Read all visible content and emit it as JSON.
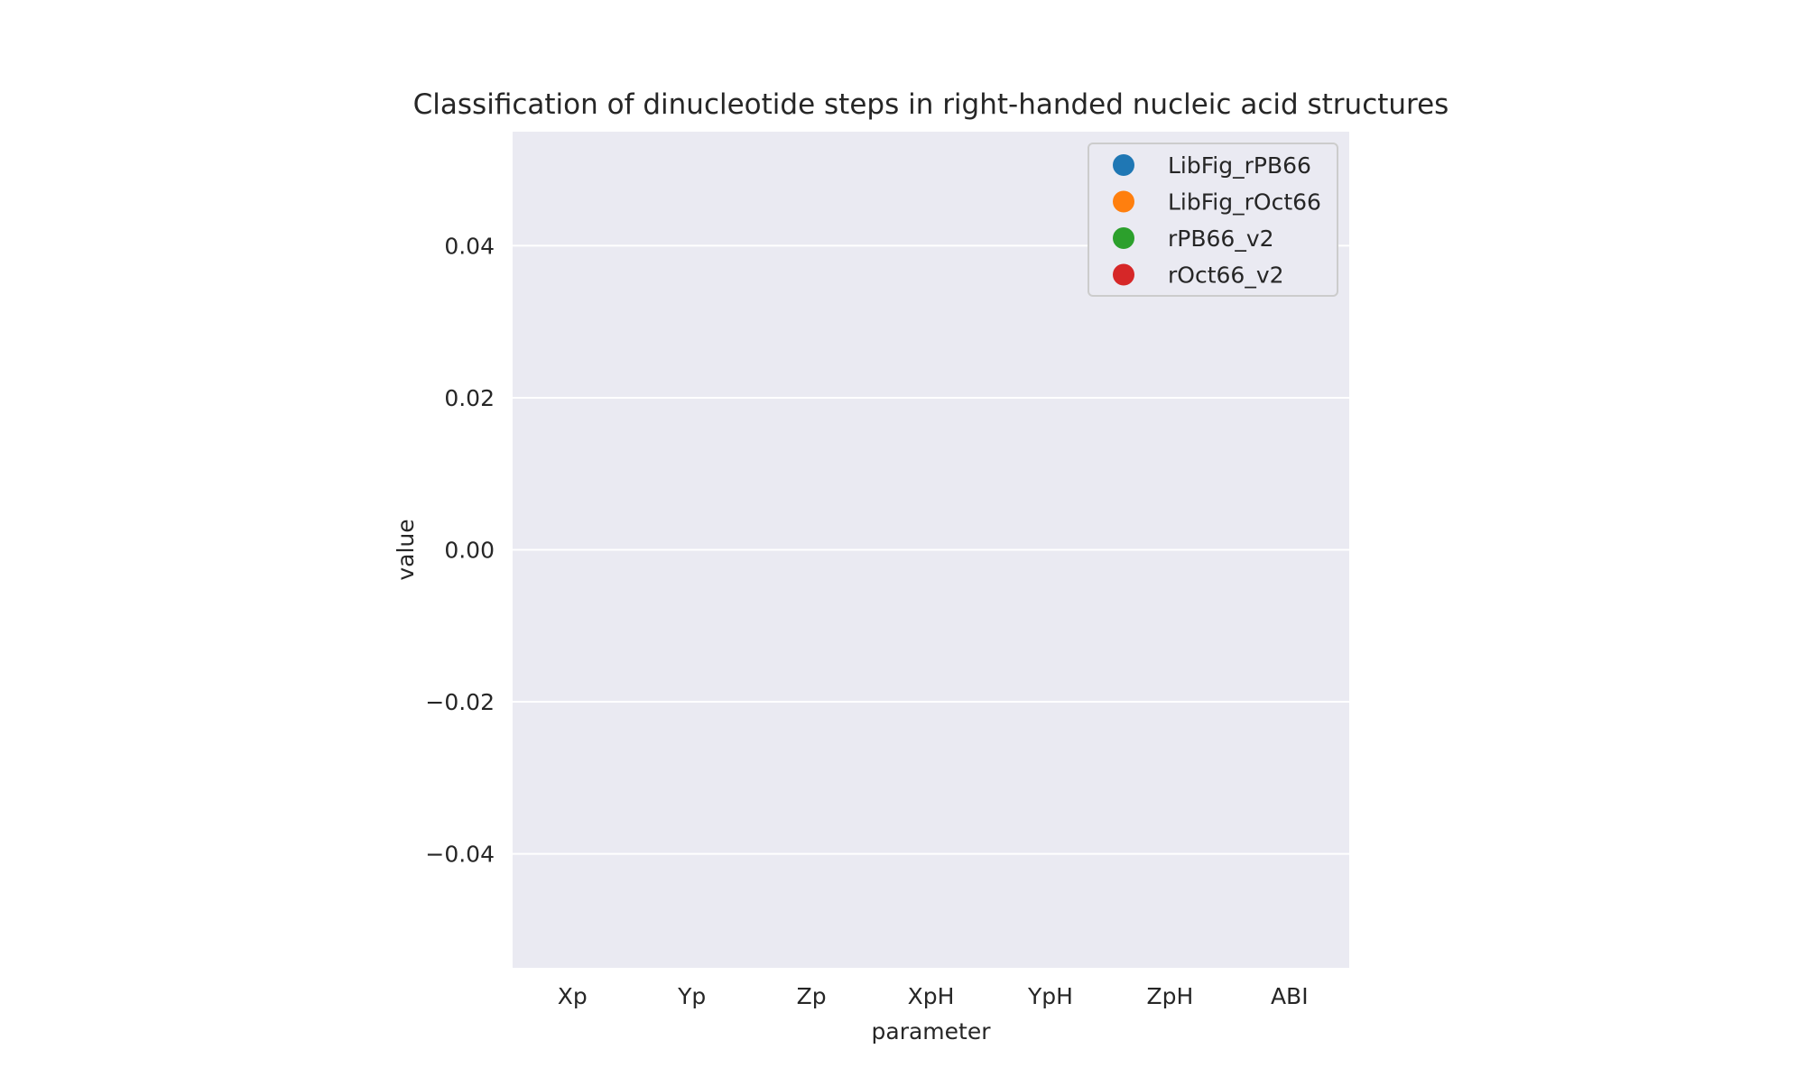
{
  "chart_data": {
    "type": "scatter",
    "title": "Classification of dinucleotide steps in right-handed nucleic acid structures",
    "xlabel": "parameter",
    "ylabel": "value",
    "categories": [
      "Xp",
      "Yp",
      "Zp",
      "XpH",
      "YpH",
      "ZpH",
      "ABI"
    ],
    "ylim": [
      -0.055,
      0.055
    ],
    "yticks": [
      0.04,
      0.02,
      0.0,
      -0.02,
      -0.04
    ],
    "ytick_labels": [
      "0.04",
      "0.02",
      "0.00",
      "−0.02",
      "−0.04"
    ],
    "grid": true,
    "legend_position": "top-right",
    "series": [
      {
        "name": "LibFig_rPB66",
        "color": "#1f77b4",
        "values": []
      },
      {
        "name": "LibFig_rOct66",
        "color": "#ff7f0e",
        "values": []
      },
      {
        "name": "rPB66_v2",
        "color": "#2ca02c",
        "values": []
      },
      {
        "name": "rOct66_v2",
        "color": "#d62728",
        "values": []
      }
    ],
    "background": "#eaeaf2",
    "grid_color": "#ffffff"
  }
}
